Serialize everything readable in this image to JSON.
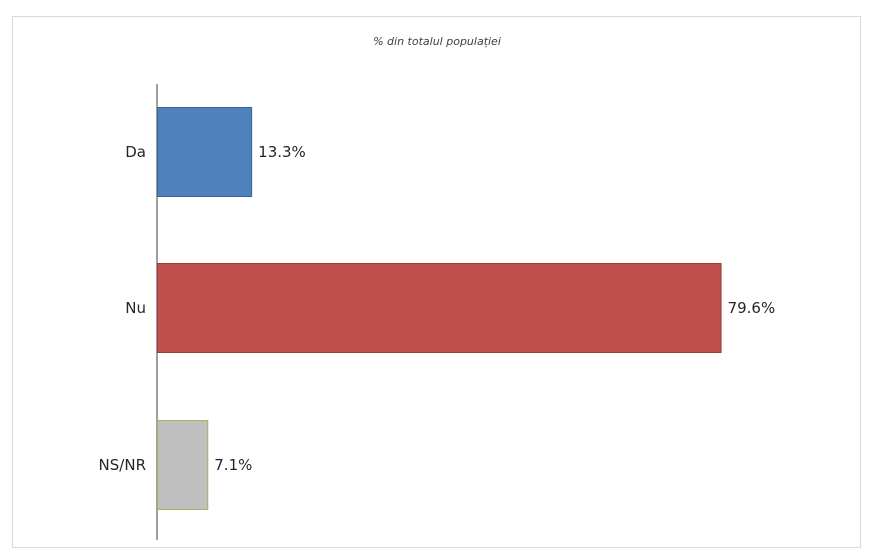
{
  "chart_data": {
    "type": "bar",
    "orientation": "horizontal",
    "title": "% din totalul populației",
    "categories": [
      "Da",
      "Nu",
      "NS/NR"
    ],
    "values": [
      13.3,
      79.6,
      7.1
    ],
    "value_labels": [
      "13.3%",
      "79.6%",
      "7.1%"
    ],
    "colors": [
      "#4f81bd",
      "#c0504d",
      "#bfbfbf"
    ],
    "bar_border_colors": [
      "#3a6396",
      "#9b3b38",
      "#9bbb59"
    ],
    "xlim": [
      0,
      100
    ],
    "grid": false,
    "legend": "none"
  }
}
